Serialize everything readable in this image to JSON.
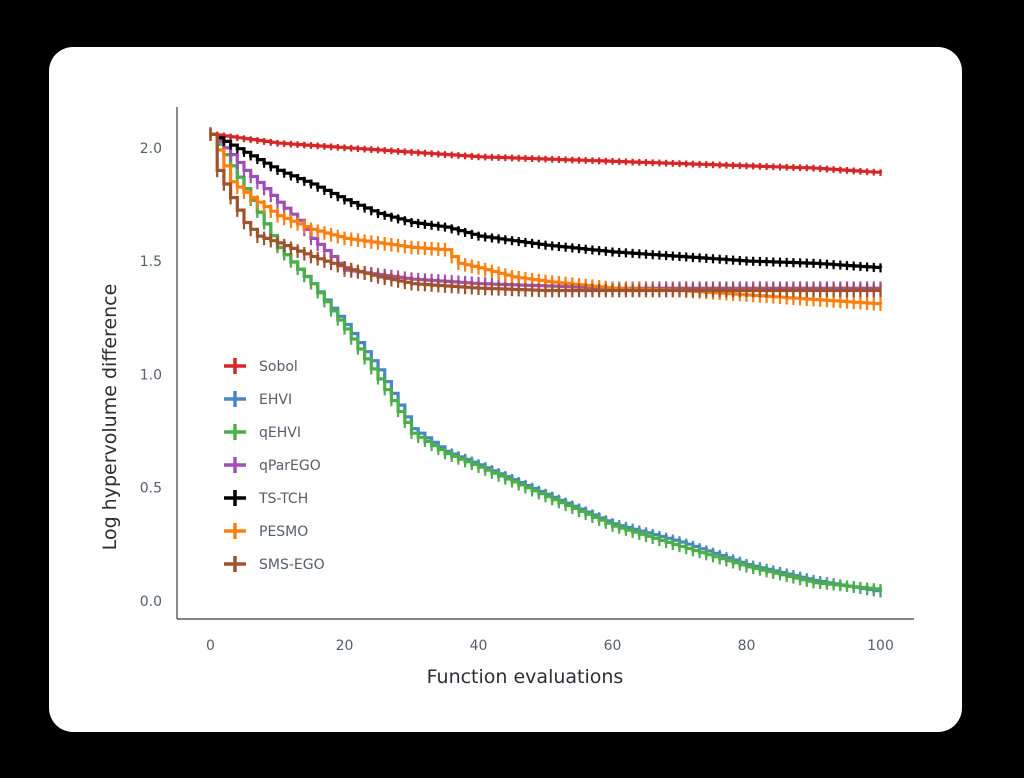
{
  "chart_data": {
    "type": "line",
    "title": "",
    "xlabel": "Function evaluations",
    "ylabel": "Log hypervolume difference",
    "xlim": [
      -5,
      105
    ],
    "ylim": [
      -0.08,
      2.18
    ],
    "xticks": [
      0,
      20,
      40,
      60,
      80,
      100
    ],
    "yticks": [
      0.0,
      0.5,
      1.0,
      1.5,
      2.0
    ],
    "xtick_labels": [
      "0",
      "20",
      "40",
      "60",
      "80",
      "100"
    ],
    "ytick_labels": [
      "0.0",
      "0.5",
      "1.0",
      "1.5",
      "2.0"
    ],
    "grid": false,
    "legend_position": "middle-left",
    "error_bars": true,
    "series": [
      {
        "name": "Sobol",
        "color": "#d62728",
        "x": [
          0,
          10,
          20,
          30,
          40,
          50,
          60,
          70,
          80,
          90,
          100
        ],
        "y": [
          2.06,
          2.02,
          2.0,
          1.98,
          1.96,
          1.95,
          1.94,
          1.93,
          1.92,
          1.91,
          1.89
        ],
        "err": 0.015
      },
      {
        "name": "EHVI",
        "color": "#4a86c5",
        "x": [
          0,
          2,
          5,
          10,
          15,
          20,
          25,
          30,
          35,
          40,
          50,
          60,
          70,
          80,
          90,
          100
        ],
        "y": [
          2.06,
          1.97,
          1.82,
          1.56,
          1.4,
          1.22,
          1.02,
          0.76,
          0.66,
          0.6,
          0.47,
          0.34,
          0.26,
          0.16,
          0.09,
          0.04
        ],
        "err": 0.025
      },
      {
        "name": "qEHVI",
        "color": "#4daf4a",
        "x": [
          0,
          2,
          5,
          10,
          15,
          20,
          25,
          30,
          35,
          40,
          50,
          60,
          70,
          80,
          90,
          100
        ],
        "y": [
          2.06,
          1.97,
          1.82,
          1.56,
          1.4,
          1.2,
          0.98,
          0.74,
          0.65,
          0.59,
          0.46,
          0.33,
          0.24,
          0.15,
          0.08,
          0.05
        ],
        "err": 0.025
      },
      {
        "name": "qParEGO",
        "color": "#a04fb5",
        "x": [
          0,
          3,
          5,
          8,
          10,
          13,
          15,
          18,
          20,
          25,
          30,
          40,
          50,
          60,
          70,
          80,
          90,
          100
        ],
        "y": [
          2.06,
          1.97,
          1.9,
          1.82,
          1.76,
          1.68,
          1.6,
          1.52,
          1.46,
          1.44,
          1.42,
          1.4,
          1.39,
          1.38,
          1.38,
          1.38,
          1.38,
          1.38
        ],
        "err": 0.03
      },
      {
        "name": "TS-TCH",
        "color": "#000000",
        "x": [
          0,
          5,
          10,
          15,
          20,
          25,
          30,
          35,
          40,
          50,
          60,
          70,
          80,
          90,
          100
        ],
        "y": [
          2.06,
          1.98,
          1.9,
          1.84,
          1.77,
          1.71,
          1.67,
          1.65,
          1.61,
          1.57,
          1.54,
          1.52,
          1.5,
          1.49,
          1.47
        ],
        "err": 0.02
      },
      {
        "name": "PESMO",
        "color": "#ff7f0e",
        "x": [
          0,
          3,
          6,
          10,
          15,
          20,
          25,
          30,
          35,
          37,
          40,
          45,
          50,
          60,
          70,
          80,
          90,
          100
        ],
        "y": [
          2.06,
          1.85,
          1.78,
          1.7,
          1.64,
          1.6,
          1.58,
          1.56,
          1.55,
          1.49,
          1.47,
          1.43,
          1.41,
          1.38,
          1.37,
          1.35,
          1.33,
          1.31
        ],
        "err": 0.03
      },
      {
        "name": "SMS-EGO",
        "color": "#a0522d",
        "x": [
          0,
          1,
          3,
          5,
          7,
          10,
          15,
          20,
          25,
          30,
          40,
          50,
          60,
          70,
          80,
          90,
          100
        ],
        "y": [
          2.06,
          1.9,
          1.78,
          1.67,
          1.61,
          1.58,
          1.52,
          1.47,
          1.43,
          1.4,
          1.38,
          1.37,
          1.37,
          1.37,
          1.37,
          1.37,
          1.37
        ],
        "err": 0.03
      }
    ]
  }
}
